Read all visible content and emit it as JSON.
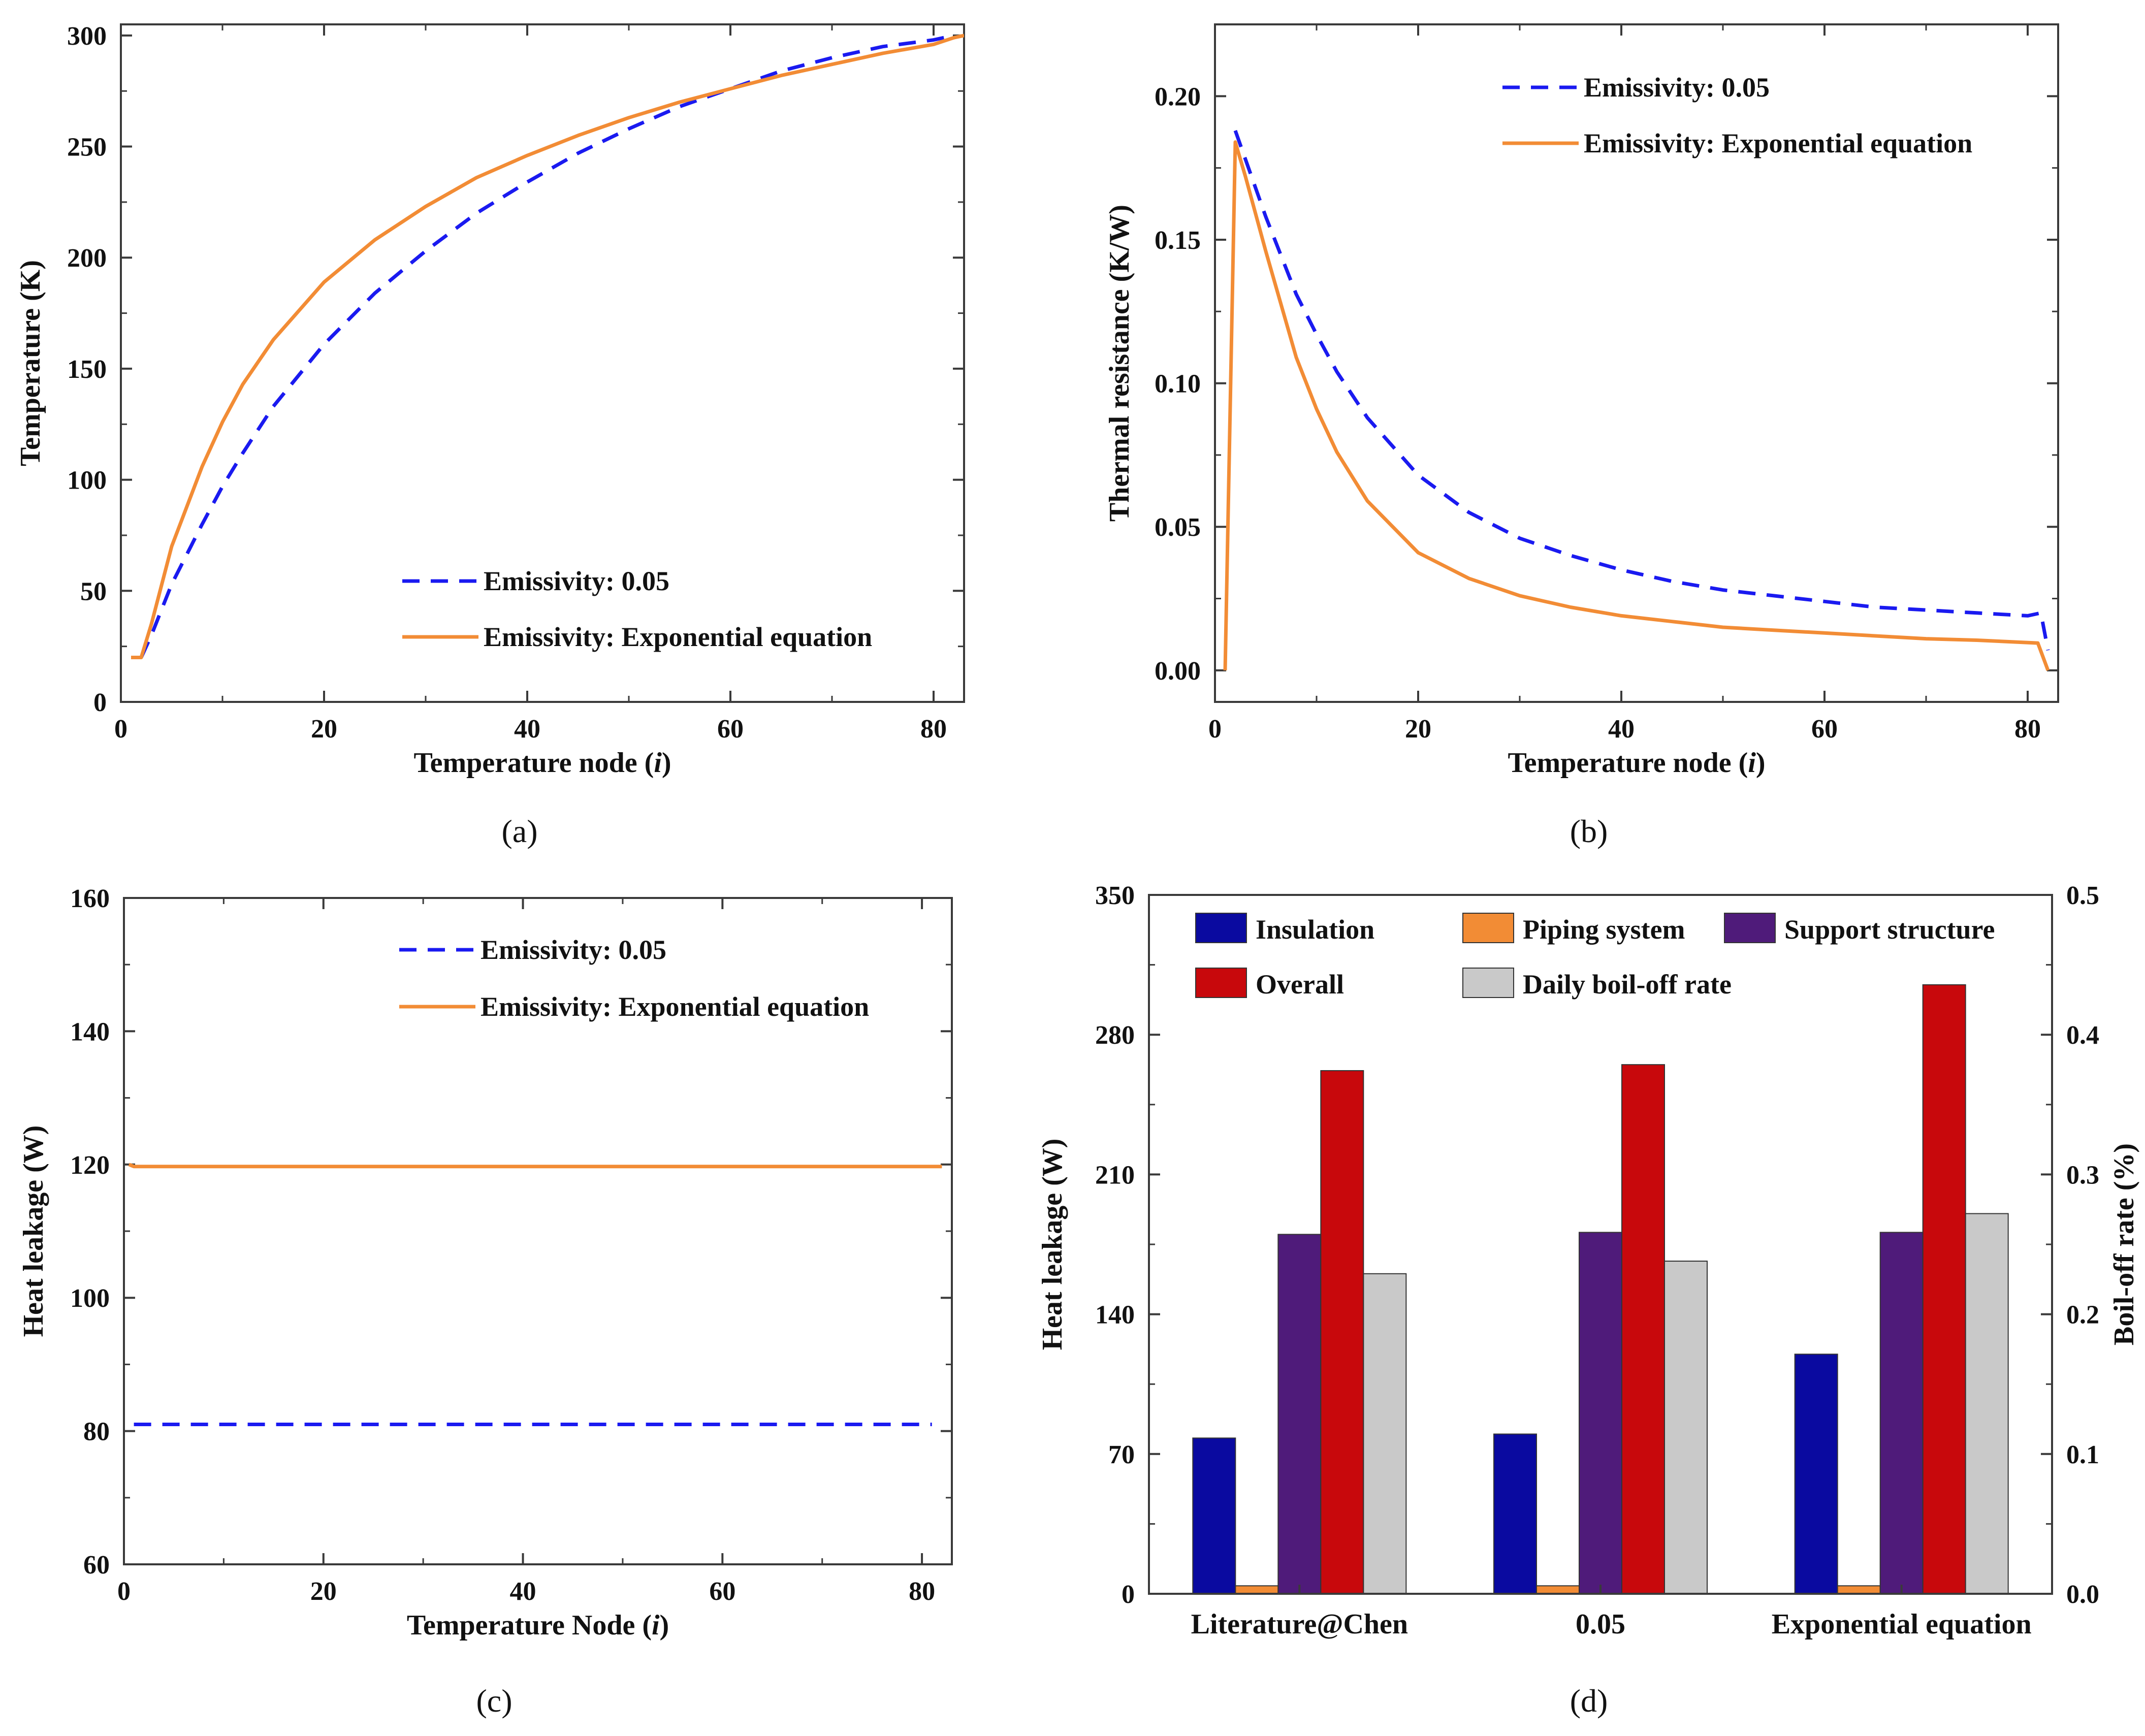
{
  "colors": {
    "dashed_blue": "#1a1af0",
    "orange": "#f28c35",
    "insulation": "#0a0aa0",
    "piping": "#f28c35",
    "support": "#4f1b7a",
    "overall": "#c8080c",
    "daily": "#c9c9c9"
  },
  "chart_data": [
    {
      "id": "a",
      "type": "line",
      "caption": "(a)",
      "xlabel": "Temperature node (i)",
      "ylabel": "Temperature (K)",
      "xlim": [
        0,
        83
      ],
      "ylim": [
        0,
        305
      ],
      "xticks": [
        0,
        20,
        40,
        60,
        80
      ],
      "yticks": [
        0,
        50,
        100,
        150,
        200,
        250,
        300
      ],
      "legend_position": "bottom-right",
      "series": [
        {
          "name": "Emissivity: 0.05",
          "style": "dashed",
          "color": "#1a1af0",
          "x": [
            2,
            3,
            5,
            8,
            10,
            12,
            15,
            20,
            25,
            30,
            35,
            40,
            45,
            50,
            55,
            60,
            65,
            70,
            75,
            80,
            82
          ],
          "y": [
            20,
            30,
            53,
            80,
            97,
            112,
            133,
            161,
            184,
            203,
            220,
            234,
            247,
            258,
            268,
            276,
            284,
            290,
            295,
            298,
            300
          ]
        },
        {
          "name": "Emissivity: Exponential equation",
          "style": "solid",
          "color": "#f28c35",
          "x": [
            1,
            2,
            3,
            5,
            8,
            10,
            12,
            15,
            20,
            25,
            30,
            35,
            40,
            45,
            50,
            55,
            60,
            65,
            70,
            75,
            80,
            82,
            83
          ],
          "y": [
            20,
            20,
            35,
            70,
            106,
            126,
            143,
            163,
            189,
            208,
            223,
            236,
            246,
            255,
            263,
            270,
            276,
            282,
            287,
            292,
            296,
            299,
            300
          ]
        }
      ]
    },
    {
      "id": "b",
      "type": "line",
      "caption": "(b)",
      "xlabel": "Temperature node (i)",
      "ylabel": "Thermal resistance (K/W)",
      "xlim": [
        0,
        83
      ],
      "ylim": [
        -0.011,
        0.225
      ],
      "xticks": [
        0,
        20,
        40,
        60,
        80
      ],
      "yticks": [
        0.0,
        0.05,
        0.1,
        0.15,
        0.2
      ],
      "ytick_labels": [
        "0.00",
        "0.05",
        "0.10",
        "0.15",
        "0.20"
      ],
      "legend_position": "top-right",
      "series": [
        {
          "name": "Emissivity: 0.05",
          "style": "dashed",
          "color": "#1a1af0",
          "x": [
            2,
            3,
            5,
            8,
            10,
            12,
            15,
            20,
            25,
            30,
            35,
            40,
            45,
            50,
            55,
            60,
            65,
            70,
            75,
            80,
            81.3,
            82
          ],
          "y": [
            0.188,
            0.178,
            0.158,
            0.131,
            0.117,
            0.104,
            0.088,
            0.068,
            0.055,
            0.046,
            0.04,
            0.035,
            0.031,
            0.028,
            0.026,
            0.024,
            0.022,
            0.021,
            0.02,
            0.019,
            0.02,
            0.007
          ]
        },
        {
          "name": "Emissivity: Exponential equation",
          "style": "solid",
          "color": "#f28c35",
          "x": [
            1,
            2,
            3,
            5,
            8,
            10,
            12,
            15,
            20,
            25,
            30,
            35,
            40,
            45,
            50,
            55,
            60,
            65,
            70,
            75,
            81,
            82
          ],
          "y": [
            0.0,
            0.184,
            0.172,
            0.146,
            0.109,
            0.091,
            0.076,
            0.059,
            0.041,
            0.032,
            0.026,
            0.022,
            0.019,
            0.017,
            0.015,
            0.014,
            0.013,
            0.012,
            0.011,
            0.0105,
            0.0095,
            0.0
          ]
        }
      ]
    },
    {
      "id": "c",
      "type": "line",
      "caption": "(c)",
      "xlabel": "Temperature Node (i)",
      "ylabel": "Heat leakage (W)",
      "xlim": [
        0,
        83
      ],
      "ylim": [
        60,
        160
      ],
      "xticks": [
        0,
        20,
        40,
        60,
        80
      ],
      "yticks": [
        60,
        80,
        100,
        120,
        140,
        160
      ],
      "legend_position": "top-right",
      "series": [
        {
          "name": "Emissivity: 0.05",
          "style": "dashed",
          "color": "#1a1af0",
          "x": [
            1,
            81
          ],
          "y": [
            81,
            81
          ]
        },
        {
          "name": "Emissivity: Exponential equation",
          "style": "solid",
          "color": "#f28c35",
          "x": [
            0.5,
            1,
            82
          ],
          "y": [
            120,
            119.7,
            119.7
          ]
        }
      ]
    },
    {
      "id": "d",
      "type": "bar",
      "caption": "(d)",
      "categories": [
        "Literature@Chen",
        "0.05",
        "Exponential equation"
      ],
      "ylabel": "Heat leakage (W)",
      "y2label": "Boil-off rate (%)",
      "ylim": [
        0,
        350
      ],
      "y2lim": [
        0.0,
        0.5
      ],
      "yticks": [
        0,
        70,
        140,
        210,
        280,
        350
      ],
      "y2ticks": [
        0.0,
        0.1,
        0.2,
        0.3,
        0.4,
        0.5
      ],
      "y2tick_labels": [
        "0.0",
        "0.1",
        "0.2",
        "0.3",
        "0.4",
        "0.5"
      ],
      "legend_position": "top",
      "series": [
        {
          "name": "Insulation",
          "axis": "left",
          "color": "#0a0aa0",
          "values": [
            78,
            80,
            120
          ]
        },
        {
          "name": "Piping system",
          "axis": "left",
          "color": "#f28c35",
          "values": [
            4,
            4,
            4
          ]
        },
        {
          "name": "Support structure",
          "axis": "left",
          "color": "#4f1b7a",
          "values": [
            180,
            181,
            181
          ]
        },
        {
          "name": "Overall",
          "axis": "left",
          "color": "#c8080c",
          "values": [
            262,
            265,
            305
          ]
        },
        {
          "name": "Daily boil-off rate",
          "axis": "right",
          "color": "#c9c9c9",
          "values": [
            0.229,
            0.238,
            0.272
          ]
        }
      ]
    }
  ]
}
